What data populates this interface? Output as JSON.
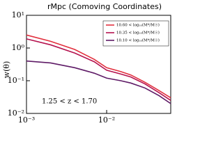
{
  "chart_data": {
    "type": "line",
    "title": "rMpc (Comoving Coordinates)",
    "y_label": "w(θ)",
    "annotation": "1.25 < z < 1.70",
    "log_x": true,
    "log_y": true,
    "x": [
      0.001,
      0.002,
      0.004,
      0.007,
      0.01,
      0.015,
      0.02,
      0.03,
      0.045,
      0.063
    ],
    "series": [
      {
        "name": "10.60 < log₁₀(M*/M☉)",
        "color": "#e2303e",
        "values": [
          2.5,
          1.6,
          0.9,
          0.45,
          0.25,
          0.19,
          0.15,
          0.09,
          0.05,
          0.03
        ]
      },
      {
        "name": "10.35 < log₁₀(M*/M☉)",
        "color": "#b5124e",
        "values": [
          1.9,
          1.25,
          0.7,
          0.38,
          0.21,
          0.16,
          0.13,
          0.08,
          0.043,
          0.025
        ]
      },
      {
        "name": "10.10 < log₁₀(M*/M☉)",
        "color": "#5e1a66",
        "values": [
          0.4,
          0.35,
          0.25,
          0.17,
          0.12,
          0.1,
          0.085,
          0.06,
          0.035,
          0.02
        ]
      }
    ],
    "xlim": [
      0.001,
      0.063
    ],
    "ylim": [
      0.01,
      10
    ],
    "xticks": [
      {
        "value": 0.001,
        "label": "10⁻³"
      },
      {
        "value": 0.01,
        "label": "10⁻²"
      }
    ],
    "yticks": [
      {
        "value": 0.01,
        "label": "10⁻²"
      },
      {
        "value": 0.1,
        "label": "10⁻¹"
      },
      {
        "value": 1,
        "label": "10⁰"
      },
      {
        "value": 10,
        "label": "10¹"
      }
    ],
    "legend": "upper right"
  }
}
